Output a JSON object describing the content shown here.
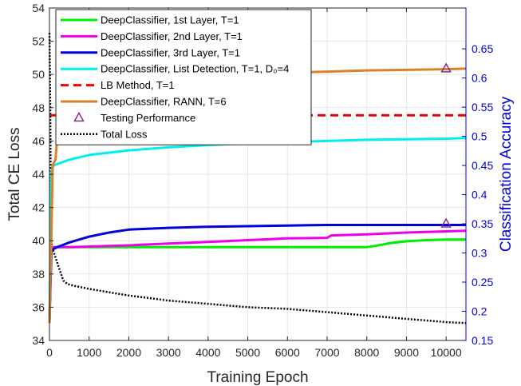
{
  "chart_data": {
    "type": "line",
    "xlabel": "Training Epoch",
    "ylabel_left": "Total CE Loss",
    "ylabel_right": "Classification Accuracy",
    "xlim": [
      0,
      10500
    ],
    "ylim_left": [
      34,
      54
    ],
    "ylim_right": [
      0.15,
      0.72
    ],
    "x_ticks": [
      0,
      1000,
      2000,
      3000,
      4000,
      5000,
      6000,
      7000,
      8000,
      9000,
      10000
    ],
    "y_left_ticks": [
      34,
      36,
      38,
      40,
      42,
      44,
      46,
      48,
      50,
      52,
      54
    ],
    "y_right_ticks": [
      0.15,
      0.2,
      0.25,
      0.3,
      0.35,
      0.4,
      0.45,
      0.5,
      0.55,
      0.6,
      0.65
    ],
    "grid": true,
    "legend_position": "top-left",
    "series": [
      {
        "name": "DeepClassifier, 1st Layer, T=1",
        "color": "#00ee00",
        "axis": "right",
        "style": "solid",
        "x": [
          0,
          40,
          80,
          150,
          300,
          1000,
          2000,
          3000,
          5000,
          7000,
          8000,
          8200,
          8600,
          9000,
          9500,
          10000,
          10500
        ],
        "y": [
          0.18,
          0.305,
          0.308,
          0.31,
          0.31,
          0.31,
          0.31,
          0.31,
          0.31,
          0.31,
          0.31,
          0.312,
          0.317,
          0.32,
          0.322,
          0.323,
          0.323
        ]
      },
      {
        "name": "DeepClassifier, 2nd Layer, T=1",
        "color": "#ee00ee",
        "axis": "right",
        "style": "solid",
        "x": [
          0,
          40,
          100,
          500,
          1000,
          2000,
          3000,
          4000,
          5000,
          6000,
          7000,
          7100,
          8000,
          9000,
          10000,
          10500
        ],
        "y": [
          0.18,
          0.306,
          0.31,
          0.31,
          0.311,
          0.313,
          0.316,
          0.319,
          0.322,
          0.325,
          0.326,
          0.33,
          0.332,
          0.335,
          0.337,
          0.338
        ]
      },
      {
        "name": "DeepClassifier, 3rd Layer, T=1",
        "color": "#0000dd",
        "axis": "right",
        "style": "solid",
        "x": [
          0,
          50,
          200,
          500,
          1000,
          1500,
          2000,
          3000,
          4000,
          5000,
          6000,
          7000,
          8000,
          9000,
          10000,
          10500
        ],
        "y": [
          0.18,
          0.305,
          0.31,
          0.318,
          0.328,
          0.335,
          0.34,
          0.343,
          0.345,
          0.346,
          0.347,
          0.348,
          0.348,
          0.348,
          0.348,
          0.348
        ]
      },
      {
        "name": "DeepClassifier, List Detection, T=1, D₀=4",
        "color": "#00eeee",
        "axis": "right",
        "style": "solid",
        "x": [
          0,
          30,
          50,
          100,
          300,
          500,
          1000,
          2000,
          3000,
          4000,
          5000,
          6000,
          7000,
          8000,
          9000,
          10000,
          10500
        ],
        "y": [
          0.18,
          0.35,
          0.44,
          0.45,
          0.455,
          0.46,
          0.468,
          0.476,
          0.481,
          0.485,
          0.488,
          0.49,
          0.492,
          0.494,
          0.495,
          0.496,
          0.497
        ]
      },
      {
        "name": "LB Method, T=1",
        "color": "#ee0000",
        "axis": "right",
        "style": "dashed",
        "x": [
          0,
          10500
        ],
        "y": [
          0.536,
          0.536
        ]
      },
      {
        "name": "DeepClassifier, RANN, T=6",
        "color": "#d9822b",
        "axis": "right",
        "style": "solid",
        "x": [
          0,
          40,
          80,
          150,
          200,
          260,
          300,
          400,
          500,
          700,
          1000,
          1500,
          2000,
          3000,
          4000,
          5000,
          6000,
          7000,
          8000,
          9000,
          10000,
          10500
        ],
        "y": [
          0.18,
          0.3,
          0.45,
          0.46,
          0.5,
          0.52,
          0.55,
          0.56,
          0.57,
          0.58,
          0.59,
          0.595,
          0.6,
          0.603,
          0.605,
          0.607,
          0.609,
          0.611,
          0.613,
          0.614,
          0.615,
          0.616
        ]
      },
      {
        "name": "Total Loss",
        "color": "#000000",
        "axis": "left",
        "style": "dotted",
        "x": [
          0,
          20,
          40,
          80,
          150,
          250,
          350,
          450,
          600,
          1000,
          1500,
          2000,
          3000,
          4000,
          5000,
          6000,
          7000,
          8000,
          9000,
          9500,
          10000,
          10500
        ],
        "y": [
          52.5,
          48,
          40,
          39.5,
          39,
          38.3,
          37.6,
          37.4,
          37.3,
          37.1,
          36.9,
          36.7,
          36.4,
          36.2,
          36.0,
          35.9,
          35.7,
          35.5,
          35.3,
          35.2,
          35.1,
          35.05
        ]
      }
    ],
    "testing_points": {
      "name": "Testing Performance",
      "color": "#8b2a8b",
      "axis": "right",
      "x": [
        10000,
        10000
      ],
      "y": [
        0.616,
        0.35
      ]
    }
  }
}
